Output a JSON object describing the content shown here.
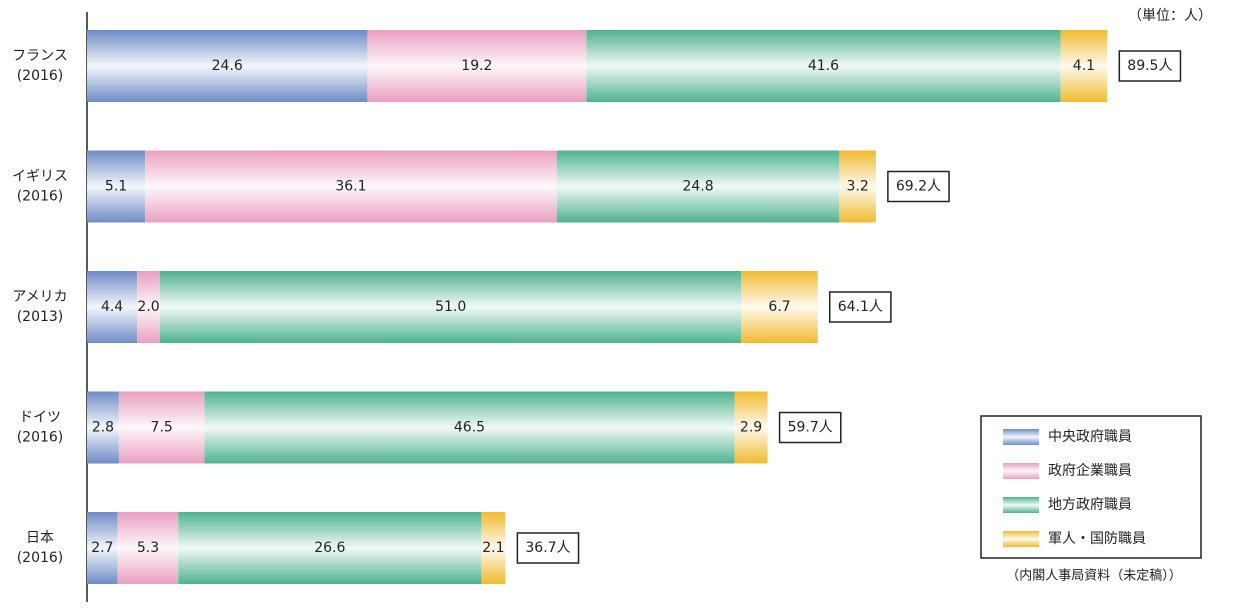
{
  "chart_data": {
    "type": "stacked_barh",
    "unit_note": "（単位：人）",
    "source": "（内閣人事局資料（未定稿））",
    "categories": [
      "フランス",
      "イギリス",
      "アメリカ",
      "ドイツ",
      "日本"
    ],
    "category_years": [
      "(2016)",
      "(2016)",
      "(2013)",
      "(2016)",
      "(2016)"
    ],
    "xlim": [
      0,
      100
    ],
    "series": [
      {
        "name": "中央政府職員",
        "color": "#6f8cc6",
        "values": [
          24.6,
          5.1,
          4.4,
          2.8,
          2.7
        ],
        "value_labels": [
          "24.6",
          "5.1",
          "4.4",
          "2.8",
          "2.7"
        ]
      },
      {
        "name": "政府企業職員",
        "color": "#e99fc0",
        "values": [
          19.2,
          36.1,
          2.0,
          7.5,
          5.3
        ],
        "value_labels": [
          "19.2",
          "36.1",
          "2.0",
          "7.5",
          "5.3"
        ]
      },
      {
        "name": "地方政府職員",
        "color": "#4fb28f",
        "values": [
          41.6,
          24.8,
          51.0,
          46.5,
          26.6
        ],
        "value_labels": [
          "41.6",
          "24.8",
          "51.0",
          "46.5",
          "26.6"
        ]
      },
      {
        "name": "軍人・国防職員",
        "color": "#f0bb30",
        "values": [
          4.1,
          3.2,
          6.7,
          2.9,
          2.1
        ],
        "value_labels": [
          "4.1",
          "3.2",
          "6.7",
          "2.9",
          "2.1"
        ]
      }
    ],
    "totals": [
      89.5,
      69.2,
      64.1,
      59.7,
      36.7
    ],
    "total_labels": [
      "89.5人",
      "69.2人",
      "64.1人",
      "59.7人",
      "36.7人"
    ]
  }
}
